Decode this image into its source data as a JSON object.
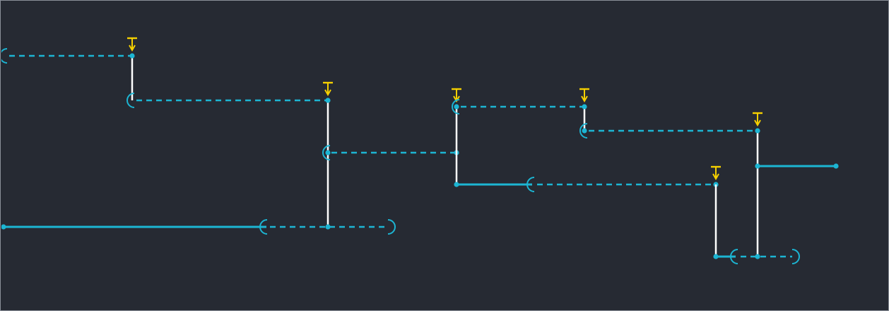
{
  "colors": {
    "background": "#262a33",
    "border": "#8a8f99",
    "solid_line": "#1cb5d3",
    "dashed_line": "#1cb5d3",
    "vertical_link": "#ffffff",
    "node_dot": "#1cb5d3",
    "marker": "#f5d000"
  },
  "icons": {
    "marker": "tee-down-arrow-icon",
    "open_bracket": "open-arc-icon",
    "close_bracket": "close-arc-icon"
  }
}
